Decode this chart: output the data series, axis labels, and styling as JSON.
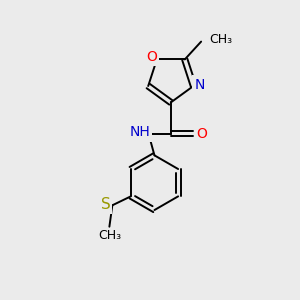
{
  "background_color": "#ebebeb",
  "bond_color": "#000000",
  "figsize": [
    3.0,
    3.0
  ],
  "dpi": 100,
  "atom_labels": {
    "O_oxazole": {
      "text": "O",
      "color": "#ff0000",
      "fontsize": 10
    },
    "N_oxazole": {
      "text": "N",
      "color": "#0000cc",
      "fontsize": 10
    },
    "N_amide": {
      "text": "NH",
      "color": "#0000cc",
      "fontsize": 10
    },
    "O_amide": {
      "text": "O",
      "color": "#ff0000",
      "fontsize": 10
    },
    "S": {
      "text": "S",
      "color": "#999900",
      "fontsize": 11
    },
    "CH3_top": {
      "text": "CH₃",
      "color": "#000000",
      "fontsize": 9
    },
    "CH3_S": {
      "text": "CH₃",
      "color": "#000000",
      "fontsize": 9
    }
  }
}
